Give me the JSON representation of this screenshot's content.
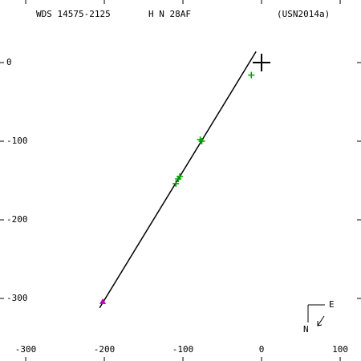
{
  "chart_data": {
    "type": "scatter",
    "title": "WDS 14575-2125",
    "discoverer": "H N  28AF",
    "reference": "(USN2014a)",
    "xlim": [
      -332.7,
      126.5
    ],
    "ylim": [
      -379.6,
      79.6
    ],
    "xticks": [
      -300,
      -200,
      -100,
      0,
      100
    ],
    "yticks": [
      -300,
      -200,
      -100,
      0
    ],
    "series": [
      {
        "type": "line",
        "color": "#000000",
        "x": [
          -206,
          -7
        ],
        "y": [
          -312,
          14
        ]
      },
      {
        "marker": "cross",
        "color": "#00a000",
        "x": [
          -13,
          -76,
          -78,
          -104,
          -106,
          -109
        ],
        "y": [
          -16,
          -100,
          -98,
          -145,
          -148,
          -154
        ]
      },
      {
        "marker": "triangle",
        "color": "#c000c0",
        "x": [
          -202
        ],
        "y": [
          -304
        ]
      },
      {
        "marker": "big-cross",
        "color": "#000000",
        "x": [
          0
        ],
        "y": [
          0
        ]
      }
    ],
    "compass": {
      "east": "E",
      "north": "N"
    }
  }
}
